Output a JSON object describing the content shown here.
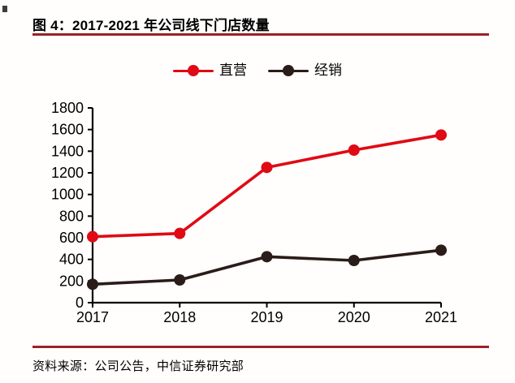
{
  "figure": {
    "title": "图 4：2017-2021 年公司线下门店数量",
    "source": "资料来源：公司公告，中信证券研究部"
  },
  "colors": {
    "accent_red": "#e00a14",
    "dark_series": "#2a1c18",
    "rule_maroon": "#9a2226",
    "axis": "#000000"
  },
  "chart_data": {
    "type": "line",
    "title": "2017-2021 年公司线下门店数量",
    "categories": [
      "2017",
      "2018",
      "2019",
      "2020",
      "2021"
    ],
    "series": [
      {
        "name": "直营",
        "color": "#e00a14",
        "values": [
          610,
          640,
          1250,
          1410,
          1550
        ]
      },
      {
        "name": "经销",
        "color": "#2a1c18",
        "values": [
          170,
          210,
          425,
          390,
          485
        ]
      }
    ],
    "xlabel": "",
    "ylabel": "",
    "ylim": [
      0,
      1800
    ],
    "ytick_step": 200,
    "grid": false,
    "legend_position": "top",
    "marker": "circle"
  }
}
